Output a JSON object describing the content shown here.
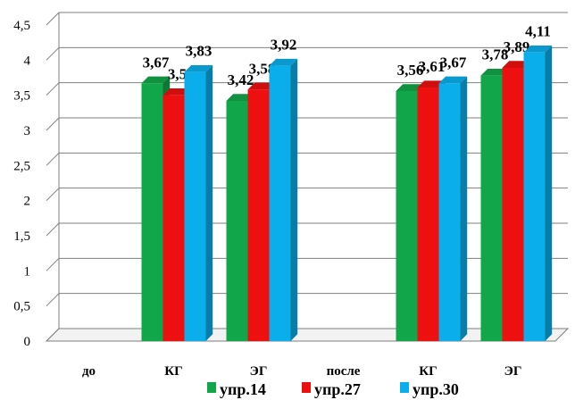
{
  "chart_data": {
    "type": "bar",
    "categories": [
      "до",
      "КГ",
      "ЭГ",
      "после",
      "КГ",
      "ЭГ"
    ],
    "series": [
      {
        "name": "упр.14",
        "color": "#12a64a",
        "values": [
          null,
          3.67,
          3.42,
          null,
          3.56,
          3.78
        ]
      },
      {
        "name": "упр.27",
        "color": "#ee1010",
        "values": [
          null,
          3.5,
          3.58,
          null,
          3.61,
          3.89
        ]
      },
      {
        "name": "упр.30",
        "color": "#0aaeea",
        "values": [
          null,
          3.83,
          3.92,
          null,
          3.67,
          4.11
        ]
      }
    ],
    "data_labels": [
      [
        null,
        "3,67",
        "3,42",
        null,
        "3,56",
        "3,78"
      ],
      [
        null,
        "3,5",
        "3,58",
        null,
        "3,61",
        "3,89"
      ],
      [
        null,
        "3,83",
        "3,92",
        null,
        "3,67",
        "4,11"
      ]
    ],
    "y_ticks": [
      "0",
      "0,5",
      "1",
      "1,5",
      "2",
      "2,5",
      "3",
      "3,5",
      "4",
      "4,5"
    ],
    "ylim": [
      0,
      4.5
    ],
    "grid": true,
    "legend": "bottom",
    "three_d": true
  }
}
